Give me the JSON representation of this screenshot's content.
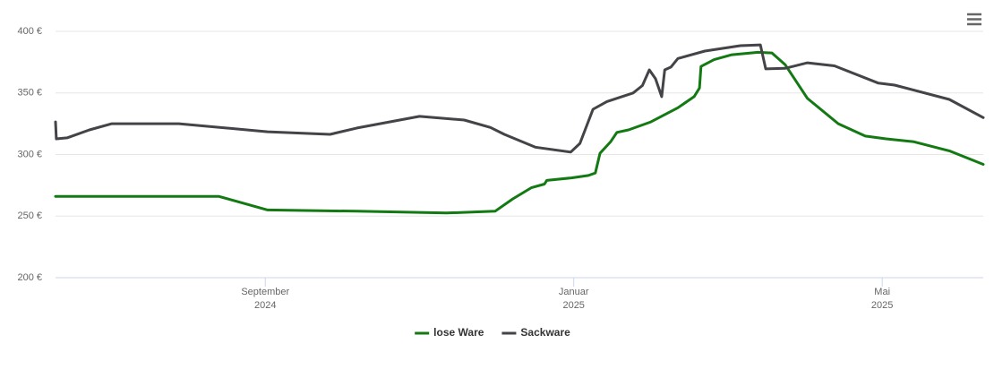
{
  "chart_data": {
    "type": "line",
    "series": [
      {
        "name": "lose Ware",
        "color": "#137a13",
        "x": [
          -2.72,
          -0.6,
          -0.37,
          0.03,
          1.19,
          2.35,
          2.98,
          3.21,
          3.45,
          3.62,
          3.65,
          3.97,
          4.19,
          4.28,
          4.34,
          4.48,
          4.56,
          4.71,
          5.0,
          5.35,
          5.56,
          5.63,
          5.65,
          5.82,
          6.05,
          6.39,
          6.57,
          6.74,
          7.03,
          7.43,
          7.78,
          8.05,
          8.4,
          8.87,
          9.31
        ],
        "values": [
          266,
          266,
          262,
          255,
          254,
          252.5,
          254,
          264,
          273,
          276,
          279,
          281,
          283,
          285,
          301,
          310.5,
          318,
          320,
          326.5,
          338,
          347,
          354,
          371.5,
          377,
          381,
          383,
          382.5,
          373,
          345.5,
          325,
          315,
          312.7,
          310.5,
          303,
          292
        ]
      },
      {
        "name": "Sackware",
        "color": "#434348",
        "x": [
          -2.72,
          -2.71,
          -2.57,
          -2.28,
          -1.99,
          -1.12,
          0.03,
          0.84,
          1.19,
          2.0,
          2.58,
          2.92,
          3.1,
          3.5,
          3.96,
          4.08,
          4.25,
          4.43,
          4.77,
          4.89,
          4.98,
          5.06,
          5.14,
          5.18,
          5.26,
          5.35,
          5.7,
          6.16,
          6.42,
          6.49,
          6.74,
          7.03,
          7.38,
          7.95,
          8.16,
          8.87,
          9.31
        ],
        "values": [
          326.5,
          312.7,
          313.5,
          320,
          325,
          325,
          318.5,
          316.4,
          321.5,
          331,
          328,
          322,
          316.4,
          306,
          302,
          309,
          336.7,
          343,
          350,
          356,
          368.7,
          361.5,
          347,
          368.7,
          371,
          378,
          384,
          388.4,
          389,
          369.5,
          370,
          374.5,
          372,
          358,
          356.4,
          344.7,
          330
        ]
      }
    ],
    "xlim": [
      -2.72,
      9.31
    ],
    "xticks": [
      {
        "value": 0,
        "label": "September\n2024"
      },
      {
        "value": 4,
        "label": "Januar\n2025"
      },
      {
        "value": 8,
        "label": "Mai\n2025"
      }
    ],
    "ylim": [
      200,
      400
    ],
    "yticks": [
      {
        "value": 200,
        "label": "200 €"
      },
      {
        "value": 250,
        "label": "250 €"
      },
      {
        "value": 300,
        "label": "300 €"
      },
      {
        "value": 350,
        "label": "350 €"
      },
      {
        "value": 400,
        "label": "400 €"
      }
    ],
    "grid": true
  }
}
